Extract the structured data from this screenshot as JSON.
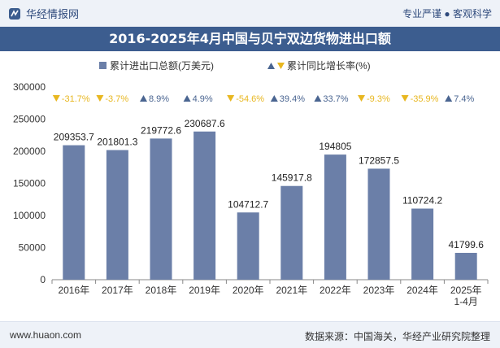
{
  "header": {
    "brand": "华经情报网",
    "right_text": "专业严谨 ● 客观科学"
  },
  "chart_data": {
    "type": "bar",
    "title": "2016-2025年4月中国与贝宁双边货物进出口额",
    "categories": [
      "2016年",
      "2017年",
      "2018年",
      "2019年",
      "2020年",
      "2021年",
      "2022年",
      "2023年",
      "2024年",
      "2025年\n1-4月"
    ],
    "series": [
      {
        "name": "累计进出口总额(万美元)",
        "values": [
          209353.7,
          201801.3,
          219772.6,
          230687.6,
          104712.7,
          145917.8,
          194805,
          172857.5,
          110724.2,
          41799.6
        ],
        "value_labels": [
          "209353.7",
          "201801.3",
          "219772.6",
          "230687.6",
          "104712.7",
          "145917.8",
          "194805",
          "172857.5",
          "110724.2",
          "41799.6"
        ],
        "color": "#6b7fa8"
      },
      {
        "name": "累计同比增长率(%)",
        "values": [
          -31.7,
          -3.7,
          8.9,
          4.9,
          -54.6,
          39.4,
          33.7,
          -9.3,
          -35.9,
          7.4
        ],
        "value_labels": [
          "-31.7%",
          "-3.7%",
          "8.9%",
          "4.9%",
          "-54.6%",
          "39.4%",
          "33.7%",
          "-9.3%",
          "-35.9%",
          "7.4%"
        ],
        "up_color": "#4a6591",
        "down_color": "#e8b720"
      }
    ],
    "ylim": [
      0,
      300000
    ],
    "yticks": [
      "0",
      "50000",
      "100000",
      "150000",
      "200000",
      "250000",
      "300000"
    ],
    "legend_placement": "top-center",
    "grid": false
  },
  "footer": {
    "url": "www.huaon.com",
    "source": "数据来源：中国海关，华经产业研究院整理"
  }
}
